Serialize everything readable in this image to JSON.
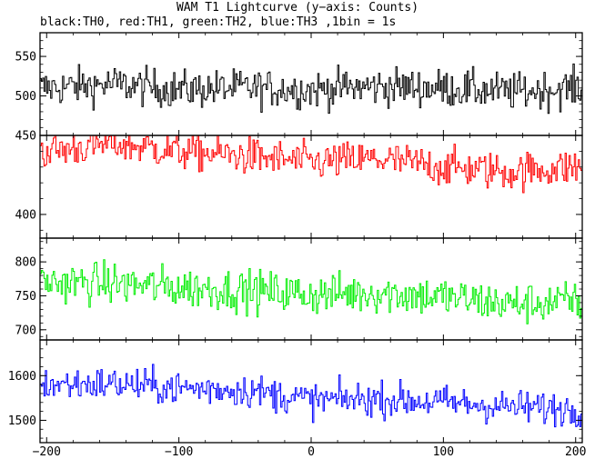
{
  "chart_data": {
    "type": "line",
    "title": "WAM T1 Lightcurve (y−axis: Counts)",
    "subtitle": "black:TH0, red:TH1, green:TH2, blue:TH3 ,1bin = 1s",
    "xlim": [
      -205,
      205
    ],
    "xticks": [
      -200,
      -100,
      0,
      100,
      200
    ],
    "xtick_labels": [
      "−200",
      "−100",
      "0",
      "100",
      "200"
    ],
    "bin_seconds": 1,
    "grid": false,
    "panels": [
      {
        "series": "TH0",
        "color": "#000000",
        "ylim": [
          450,
          580
        ],
        "yticks": [
          500,
          550
        ],
        "mean": 512,
        "noise": 22,
        "x": [
          -200,
          -150,
          -100,
          -50,
          0,
          50,
          100,
          150,
          200
        ],
        "values": [
          510,
          515,
          508,
          510,
          508,
          512,
          510,
          505,
          510
        ]
      },
      {
        "series": "TH1",
        "color": "#ff0000",
        "ylim": [
          385,
          450
        ],
        "yticks": [
          400,
          450
        ],
        "mean": 437,
        "noise": 11,
        "x": [
          -200,
          -150,
          -100,
          -50,
          0,
          50,
          100,
          150,
          200
        ],
        "values": [
          440,
          445,
          440,
          437,
          433,
          435,
          430,
          427,
          430
        ]
      },
      {
        "series": "TH2",
        "color": "#00ee00",
        "ylim": [
          685,
          835
        ],
        "yticks": [
          700,
          750,
          800
        ],
        "mean": 755,
        "noise": 28,
        "x": [
          -200,
          -150,
          -100,
          -50,
          0,
          50,
          100,
          150,
          200
        ],
        "values": [
          770,
          768,
          762,
          758,
          752,
          755,
          748,
          738,
          742
        ]
      },
      {
        "series": "TH3",
        "color": "#0000ff",
        "ylim": [
          1450,
          1680
        ],
        "yticks": [
          1500,
          1600
        ],
        "mean": 1560,
        "noise": 35,
        "x": [
          -200,
          -150,
          -100,
          -50,
          0,
          50,
          100,
          150,
          200
        ],
        "values": [
          1580,
          1582,
          1572,
          1568,
          1545,
          1548,
          1540,
          1530,
          1525
        ]
      }
    ]
  }
}
